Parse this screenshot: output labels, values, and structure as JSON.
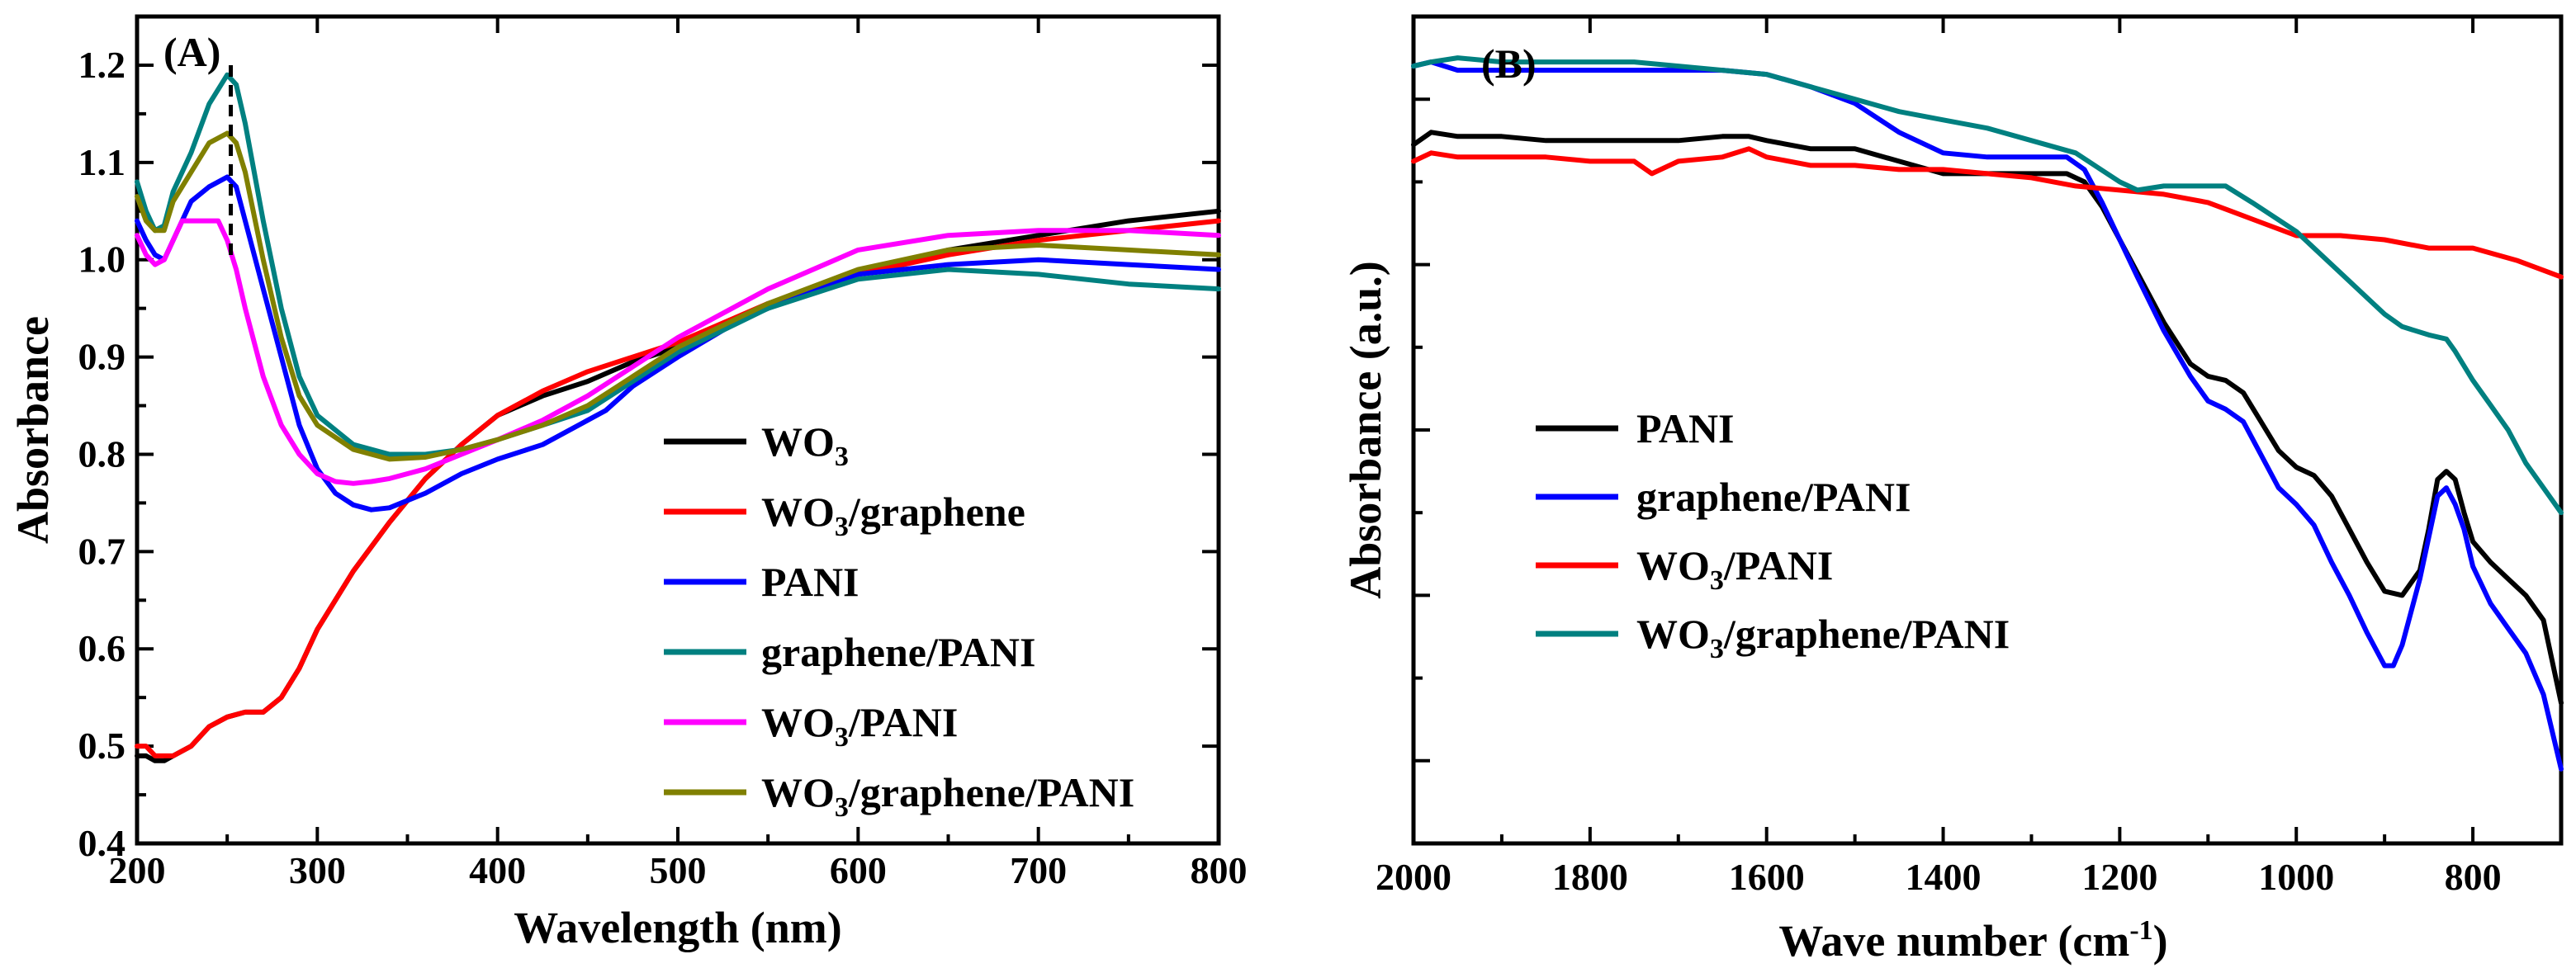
{
  "chart_data": [
    {
      "type": "line",
      "panel_label": "(A)",
      "xlabel": "Wavelength (nm)",
      "ylabel": "Absorbance",
      "xlim": [
        200,
        800
      ],
      "ylim": [
        0.4,
        1.25
      ],
      "xticks": [
        "200",
        "300",
        "400",
        "500",
        "600",
        "700",
        "800"
      ],
      "yticks": [
        "0.4",
        "0.5",
        "0.6",
        "0.7",
        "0.8",
        "0.9",
        "1.0",
        "1.1",
        "1.2"
      ],
      "marker_x": 252,
      "legend_position": "center-right",
      "series": [
        {
          "name": "WO3",
          "label_main": "WO",
          "label_sub": "3",
          "label_rest": "",
          "color": "#000000",
          "x": [
            200,
            205,
            210,
            215,
            220,
            230,
            240,
            250,
            260,
            270,
            280,
            290,
            300,
            320,
            340,
            360,
            380,
            400,
            425,
            450,
            475,
            500,
            550,
            600,
            650,
            700,
            750,
            800
          ],
          "y": [
            0.49,
            0.49,
            0.485,
            0.485,
            0.49,
            0.5,
            0.52,
            0.53,
            0.535,
            0.535,
            0.55,
            0.58,
            0.62,
            0.68,
            0.73,
            0.775,
            0.81,
            0.84,
            0.86,
            0.875,
            0.895,
            0.91,
            0.95,
            0.985,
            1.01,
            1.025,
            1.04,
            1.05
          ]
        },
        {
          "name": "WO3/graphene",
          "label_main": "WO",
          "label_sub": "3",
          "label_rest": "/graphene",
          "color": "#ff0000",
          "x": [
            200,
            205,
            210,
            215,
            220,
            230,
            240,
            250,
            260,
            270,
            280,
            290,
            300,
            320,
            340,
            360,
            380,
            400,
            425,
            450,
            475,
            500,
            550,
            600,
            650,
            700,
            750,
            800
          ],
          "y": [
            0.5,
            0.5,
            0.49,
            0.49,
            0.49,
            0.5,
            0.52,
            0.53,
            0.535,
            0.535,
            0.55,
            0.58,
            0.62,
            0.68,
            0.73,
            0.775,
            0.81,
            0.84,
            0.865,
            0.885,
            0.9,
            0.915,
            0.955,
            0.985,
            1.005,
            1.02,
            1.03,
            1.04
          ]
        },
        {
          "name": "PANI",
          "label_main": "PANI",
          "label_sub": "",
          "label_rest": "",
          "color": "#0000ff",
          "x": [
            200,
            205,
            210,
            215,
            220,
            230,
            240,
            250,
            255,
            260,
            270,
            280,
            290,
            300,
            310,
            320,
            330,
            340,
            360,
            380,
            400,
            425,
            450,
            460,
            475,
            500,
            550,
            600,
            650,
            700,
            750,
            800
          ],
          "y": [
            1.04,
            1.02,
            1.005,
            1.0,
            1.02,
            1.06,
            1.075,
            1.085,
            1.075,
            1.04,
            0.97,
            0.9,
            0.83,
            0.785,
            0.76,
            0.748,
            0.743,
            0.745,
            0.76,
            0.78,
            0.795,
            0.81,
            0.835,
            0.845,
            0.87,
            0.9,
            0.955,
            0.985,
            0.995,
            1.0,
            0.995,
            0.99
          ]
        },
        {
          "name": "graphene/PANI",
          "label_main": "graphene/PANI",
          "label_sub": "",
          "label_rest": "",
          "color": "#008080",
          "x": [
            200,
            205,
            210,
            215,
            220,
            230,
            240,
            250,
            255,
            260,
            270,
            280,
            290,
            300,
            320,
            340,
            360,
            380,
            400,
            425,
            450,
            475,
            500,
            550,
            600,
            650,
            700,
            750,
            800
          ],
          "y": [
            1.08,
            1.05,
            1.03,
            1.035,
            1.07,
            1.11,
            1.16,
            1.19,
            1.18,
            1.14,
            1.04,
            0.95,
            0.88,
            0.84,
            0.81,
            0.8,
            0.8,
            0.805,
            0.815,
            0.83,
            0.845,
            0.875,
            0.905,
            0.95,
            0.98,
            0.99,
            0.985,
            0.975,
            0.97
          ]
        },
        {
          "name": "WO3/PANI",
          "label_main": "WO",
          "label_sub": "3",
          "label_rest": "/PANI",
          "color": "#ff00ff",
          "x": [
            200,
            205,
            210,
            215,
            220,
            225,
            230,
            240,
            245,
            250,
            255,
            260,
            270,
            280,
            290,
            300,
            310,
            320,
            330,
            340,
            360,
            380,
            400,
            425,
            450,
            475,
            500,
            550,
            600,
            650,
            700,
            750,
            800
          ],
          "y": [
            1.025,
            1.005,
            0.995,
            1.0,
            1.02,
            1.04,
            1.04,
            1.04,
            1.04,
            1.02,
            0.99,
            0.95,
            0.88,
            0.83,
            0.8,
            0.78,
            0.772,
            0.77,
            0.772,
            0.775,
            0.785,
            0.8,
            0.815,
            0.835,
            0.86,
            0.89,
            0.92,
            0.97,
            1.01,
            1.025,
            1.03,
            1.03,
            1.025
          ]
        },
        {
          "name": "WO3/graphene/PANI",
          "label_main": "WO",
          "label_sub": "3",
          "label_rest": "/graphene/PANI",
          "color": "#808000",
          "x": [
            200,
            205,
            210,
            215,
            220,
            230,
            240,
            250,
            255,
            260,
            270,
            280,
            290,
            300,
            320,
            340,
            360,
            380,
            400,
            425,
            450,
            475,
            500,
            550,
            600,
            650,
            700,
            750,
            800
          ],
          "y": [
            1.065,
            1.04,
            1.03,
            1.03,
            1.06,
            1.09,
            1.12,
            1.13,
            1.12,
            1.09,
            1.0,
            0.92,
            0.86,
            0.83,
            0.805,
            0.795,
            0.797,
            0.805,
            0.815,
            0.83,
            0.85,
            0.88,
            0.91,
            0.955,
            0.99,
            1.01,
            1.015,
            1.01,
            1.005
          ]
        }
      ]
    },
    {
      "type": "line",
      "panel_label": "(B)",
      "xlabel_main": "Wave number (cm",
      "xlabel_sup": "-1",
      "xlabel_end": ")",
      "ylabel": "Absorbance (a.u.)",
      "xlim": [
        2000,
        700
      ],
      "ylim": [
        0,
        10
      ],
      "xticks": [
        "2000",
        "1800",
        "1600",
        "1400",
        "1200",
        "1000",
        "800"
      ],
      "legend_position": "center-left",
      "series": [
        {
          "name": "PANI",
          "label_main": "PANI",
          "label_sub": "",
          "label_rest": "",
          "color": "#000000",
          "x": [
            2000,
            1980,
            1950,
            1900,
            1850,
            1800,
            1750,
            1700,
            1650,
            1620,
            1600,
            1550,
            1500,
            1450,
            1400,
            1350,
            1300,
            1260,
            1240,
            1220,
            1200,
            1180,
            1150,
            1120,
            1100,
            1080,
            1060,
            1040,
            1020,
            1000,
            980,
            960,
            940,
            920,
            900,
            880,
            860,
            850,
            840,
            830,
            820,
            810,
            800,
            780,
            760,
            740,
            720,
            700
          ],
          "y": [
            8.45,
            8.6,
            8.55,
            8.55,
            8.5,
            8.5,
            8.5,
            8.5,
            8.55,
            8.55,
            8.5,
            8.4,
            8.4,
            8.25,
            8.1,
            8.1,
            8.1,
            8.1,
            8.0,
            7.7,
            7.3,
            6.9,
            6.3,
            5.8,
            5.65,
            5.6,
            5.45,
            5.1,
            4.75,
            4.55,
            4.45,
            4.2,
            3.8,
            3.4,
            3.05,
            3.0,
            3.3,
            3.8,
            4.4,
            4.5,
            4.4,
            4.0,
            3.65,
            3.4,
            3.2,
            3.0,
            2.7,
            1.7
          ]
        },
        {
          "name": "graphene/PANI",
          "label_main": "graphene/PANI",
          "label_sub": "",
          "label_rest": "",
          "color": "#0000ff",
          "x": [
            2000,
            1980,
            1950,
            1900,
            1850,
            1800,
            1750,
            1700,
            1650,
            1600,
            1550,
            1500,
            1450,
            1400,
            1350,
            1300,
            1260,
            1240,
            1220,
            1200,
            1180,
            1150,
            1120,
            1100,
            1080,
            1060,
            1040,
            1020,
            1000,
            980,
            960,
            940,
            920,
            900,
            890,
            880,
            860,
            850,
            840,
            830,
            820,
            810,
            800,
            780,
            760,
            740,
            720,
            700
          ],
          "y": [
            9.4,
            9.45,
            9.35,
            9.35,
            9.35,
            9.35,
            9.35,
            9.35,
            9.35,
            9.3,
            9.15,
            8.95,
            8.6,
            8.35,
            8.3,
            8.3,
            8.3,
            8.15,
            7.75,
            7.3,
            6.85,
            6.2,
            5.65,
            5.35,
            5.25,
            5.1,
            4.7,
            4.3,
            4.1,
            3.85,
            3.4,
            3.0,
            2.55,
            2.15,
            2.15,
            2.4,
            3.2,
            3.7,
            4.2,
            4.3,
            4.1,
            3.8,
            3.35,
            2.9,
            2.6,
            2.3,
            1.8,
            0.9
          ]
        },
        {
          "name": "WO3/PANI",
          "label_main": "WO",
          "label_sub": "3",
          "label_rest": "/PANI",
          "color": "#ff0000",
          "x": [
            2000,
            1980,
            1950,
            1900,
            1850,
            1800,
            1750,
            1730,
            1700,
            1650,
            1620,
            1600,
            1550,
            1500,
            1450,
            1400,
            1350,
            1300,
            1250,
            1200,
            1150,
            1100,
            1050,
            1000,
            950,
            900,
            850,
            800,
            750,
            700
          ],
          "y": [
            8.25,
            8.35,
            8.3,
            8.3,
            8.3,
            8.25,
            8.25,
            8.1,
            8.25,
            8.3,
            8.4,
            8.3,
            8.2,
            8.2,
            8.15,
            8.15,
            8.1,
            8.05,
            7.95,
            7.9,
            7.85,
            7.75,
            7.55,
            7.35,
            7.35,
            7.3,
            7.2,
            7.2,
            7.05,
            6.85
          ]
        },
        {
          "name": "WO3/graphene/PANI",
          "label_main": "WO",
          "label_sub": "3",
          "label_rest": "/graphene/PANI",
          "color": "#008080",
          "x": [
            2000,
            1980,
            1950,
            1900,
            1850,
            1800,
            1750,
            1700,
            1650,
            1600,
            1550,
            1500,
            1450,
            1400,
            1350,
            1300,
            1250,
            1200,
            1180,
            1150,
            1100,
            1080,
            1050,
            1000,
            950,
            920,
            900,
            880,
            850,
            830,
            820,
            800,
            780,
            760,
            740,
            720,
            700
          ],
          "y": [
            9.4,
            9.45,
            9.5,
            9.45,
            9.45,
            9.45,
            9.45,
            9.4,
            9.35,
            9.3,
            9.15,
            9.0,
            8.85,
            8.75,
            8.65,
            8.5,
            8.35,
            8.0,
            7.9,
            7.95,
            7.95,
            7.95,
            7.75,
            7.4,
            6.9,
            6.6,
            6.4,
            6.25,
            6.15,
            6.1,
            5.95,
            5.6,
            5.3,
            5.0,
            4.6,
            4.3,
            4.0
          ]
        }
      ]
    }
  ]
}
